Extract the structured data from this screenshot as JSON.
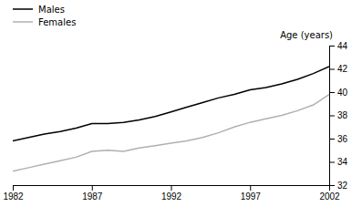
{
  "chart_data": {
    "type": "line",
    "x": [
      1982,
      1983,
      1984,
      1985,
      1986,
      1987,
      1988,
      1989,
      1990,
      1991,
      1992,
      1993,
      1994,
      1995,
      1996,
      1997,
      1998,
      1999,
      2000,
      2001,
      2002
    ],
    "series": [
      {
        "name": "Males",
        "color": "#000000",
        "values": [
          35.8,
          36.1,
          36.4,
          36.6,
          36.9,
          37.3,
          37.3,
          37.4,
          37.6,
          37.9,
          38.3,
          38.7,
          39.1,
          39.5,
          39.8,
          40.2,
          40.4,
          40.7,
          41.1,
          41.6,
          42.2
        ]
      },
      {
        "name": "Females",
        "color": "#b0b0b0",
        "values": [
          33.2,
          33.5,
          33.8,
          34.1,
          34.4,
          34.9,
          35.0,
          34.9,
          35.2,
          35.4,
          35.6,
          35.8,
          36.1,
          36.5,
          37.0,
          37.4,
          37.7,
          38.0,
          38.4,
          38.9,
          39.8
        ]
      }
    ],
    "xlim": [
      1982,
      2002
    ],
    "xticks": [
      1982,
      1987,
      1992,
      1997,
      2002
    ],
    "ylim": [
      32,
      44
    ],
    "yticks": [
      32,
      34,
      36,
      38,
      40,
      42,
      44
    ],
    "y_label": "Age (years)",
    "legend": "top-left"
  }
}
